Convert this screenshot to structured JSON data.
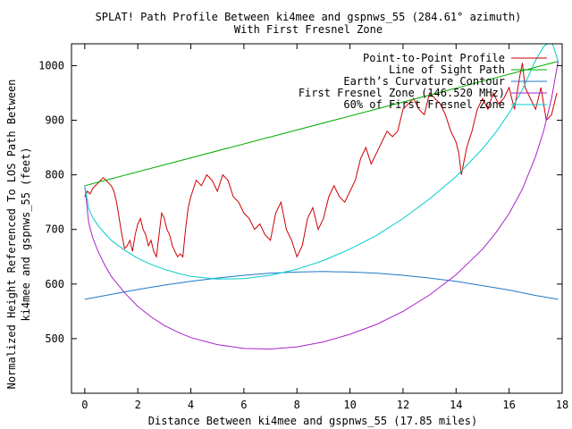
{
  "chart_data": {
    "type": "line",
    "title": "SPLAT! Path Profile Between ki4mee and gspnws_55 (284.61° azimuth)",
    "subtitle": "With First Fresnel Zone",
    "xlabel": "Distance Between ki4mee and gspnws_55 (17.85 miles)",
    "ylabel_line1": "Normalized Height Referenced To LOS Path Between",
    "ylabel_line2": "ki4mee and gspnws_55 (feet)",
    "xlim": [
      -0.5,
      18
    ],
    "ylim": [
      400,
      1040
    ],
    "xticks": [
      0,
      2,
      4,
      6,
      8,
      10,
      12,
      14,
      16,
      18
    ],
    "yticks": [
      500,
      600,
      700,
      800,
      900,
      1000
    ],
    "legend_position": "top-right",
    "grid": false,
    "series": [
      {
        "name": "Point-to-Point Profile",
        "color": "#cc0000",
        "x": [
          0,
          0.1,
          0.2,
          0.3,
          0.4,
          0.5,
          0.6,
          0.7,
          0.8,
          0.9,
          1.0,
          1.1,
          1.2,
          1.3,
          1.4,
          1.5,
          1.6,
          1.7,
          1.8,
          1.9,
          2.0,
          2.1,
          2.2,
          2.3,
          2.4,
          2.5,
          2.6,
          2.7,
          2.8,
          2.9,
          3.0,
          3.1,
          3.2,
          3.3,
          3.4,
          3.5,
          3.6,
          3.7,
          3.8,
          3.9,
          4.0,
          4.2,
          4.4,
          4.6,
          4.8,
          5.0,
          5.2,
          5.4,
          5.6,
          5.8,
          6.0,
          6.2,
          6.4,
          6.6,
          6.8,
          7.0,
          7.2,
          7.4,
          7.6,
          7.8,
          8.0,
          8.2,
          8.4,
          8.6,
          8.8,
          9.0,
          9.2,
          9.4,
          9.6,
          9.8,
          10.0,
          10.2,
          10.4,
          10.6,
          10.8,
          11.0,
          11.2,
          11.4,
          11.6,
          11.8,
          12.0,
          12.2,
          12.4,
          12.6,
          12.8,
          13.0,
          13.2,
          13.4,
          13.6,
          13.8,
          14.0,
          14.1,
          14.2,
          14.4,
          14.6,
          14.8,
          15.0,
          15.2,
          15.4,
          15.6,
          15.8,
          16.0,
          16.2,
          16.4,
          16.5,
          16.6,
          16.8,
          17.0,
          17.2,
          17.4,
          17.6,
          17.8
        ],
        "y": [
          760,
          770,
          765,
          775,
          780,
          785,
          790,
          795,
          790,
          785,
          780,
          770,
          750,
          720,
          690,
          665,
          670,
          680,
          660,
          690,
          710,
          720,
          700,
          690,
          670,
          680,
          660,
          650,
          690,
          730,
          720,
          700,
          690,
          670,
          660,
          650,
          655,
          650,
          700,
          740,
          760,
          790,
          780,
          800,
          790,
          770,
          800,
          790,
          760,
          750,
          730,
          720,
          700,
          710,
          690,
          680,
          730,
          750,
          700,
          680,
          650,
          670,
          720,
          740,
          700,
          720,
          760,
          780,
          760,
          750,
          770,
          790,
          830,
          850,
          820,
          840,
          860,
          880,
          870,
          880,
          920,
          930,
          940,
          920,
          910,
          950,
          940,
          930,
          910,
          880,
          860,
          840,
          800,
          850,
          880,
          920,
          940,
          920,
          950,
          930,
          940,
          960,
          920,
          980,
          1005,
          960,
          940,
          920,
          960,
          900,
          910,
          950
        ]
      },
      {
        "name": "Line of Sight Path",
        "color": "#00aa00",
        "x": [
          0,
          17.85
        ],
        "y": [
          780,
          1008
        ]
      },
      {
        "name": "Earth’s Curvature Contour",
        "color": "#1e78c8",
        "x": [
          0,
          1,
          2,
          3,
          4,
          5,
          6,
          7,
          8,
          9,
          10,
          11,
          12,
          13,
          14,
          15,
          16,
          17,
          17.85
        ],
        "y": [
          572,
          581,
          590,
          598,
          605,
          611,
          616,
          620,
          622,
          623,
          622,
          620,
          616,
          611,
          605,
          597,
          589,
          579,
          572
        ]
      },
      {
        "name": "First Fresnel Zone (146.520 MHz)",
        "color": "#aa22cc",
        "x": [
          0,
          0.15,
          0.3,
          0.5,
          0.75,
          1,
          1.5,
          2,
          2.5,
          3,
          3.5,
          4,
          5,
          6,
          7,
          8,
          9,
          10,
          11,
          12,
          13,
          14,
          15,
          15.5,
          16,
          16.5,
          17,
          17.3,
          17.6,
          17.85
        ],
        "y": [
          780,
          712,
          685,
          660,
          635,
          614,
          584,
          559,
          540,
          524,
          512,
          502,
          489,
          482,
          481,
          485,
          494,
          508,
          526,
          550,
          580,
          617,
          664,
          694,
          729,
          774,
          834,
          880,
          940,
          1008
        ]
      },
      {
        "name": "60% of First Fresnel Zone",
        "color": "#00cccc",
        "x": [
          0,
          0.15,
          0.3,
          0.5,
          0.75,
          1,
          1.5,
          2,
          2.5,
          3,
          3.5,
          4,
          5,
          6,
          7,
          8,
          9,
          10,
          11,
          12,
          13,
          14,
          15,
          15.5,
          16,
          16.5,
          17,
          17.3,
          17.6,
          17.85
        ],
        "y": [
          780,
          738,
          722,
          707,
          693,
          680,
          662,
          647,
          636,
          627,
          620,
          614,
          609,
          610,
          616,
          627,
          643,
          664,
          689,
          720,
          756,
          797,
          848,
          878,
          913,
          956,
          1010,
          1035,
          1045,
          1008
        ]
      }
    ]
  }
}
